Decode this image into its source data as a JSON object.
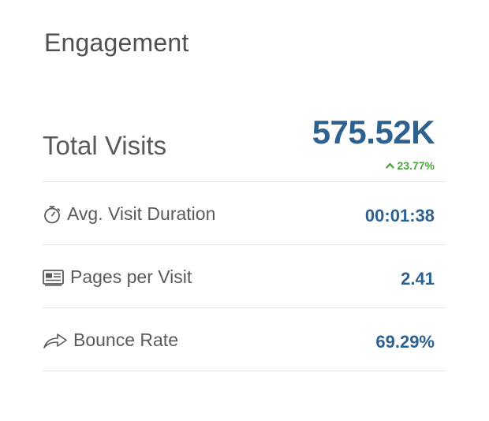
{
  "widget": {
    "title": "Engagement",
    "total_visits": {
      "label": "Total Visits",
      "value": "575.52K",
      "change": "23.77%",
      "change_direction": "up",
      "change_color": "#4aa63c"
    },
    "metrics": [
      {
        "icon": "stopwatch-icon",
        "label": "Avg. Visit Duration",
        "value": "00:01:38"
      },
      {
        "icon": "pages-icon",
        "label": "Pages per Visit",
        "value": "2.41"
      },
      {
        "icon": "share-arrow-icon",
        "label": "Bounce Rate",
        "value": "69.29%"
      }
    ],
    "value_color": "#2d6190"
  }
}
